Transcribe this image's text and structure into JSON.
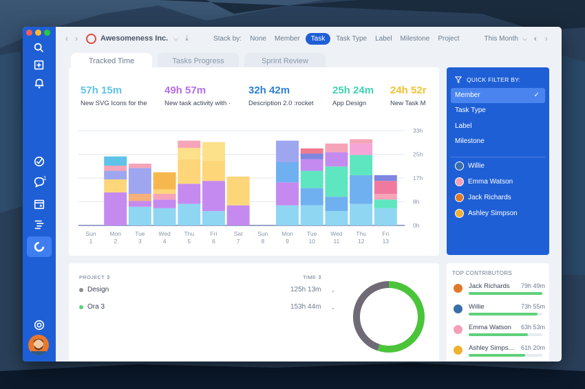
{
  "colors": {
    "brand": "#1f5fd6",
    "accent": "#3f7ef0",
    "green": "#4bc44a"
  },
  "sidebar": {
    "icons": [
      "search-icon",
      "add-task-icon",
      "bell-icon",
      "check-circle-icon",
      "chat-icon",
      "calendar-icon",
      "list-icon",
      "reports-icon",
      "help-icon"
    ],
    "chat_badge": "1"
  },
  "toolbar": {
    "company": "Awesomeness Inc.",
    "stack_by_label": "Stack by:",
    "stack_options": [
      "None",
      "Member",
      "Task",
      "Task Type",
      "Label",
      "Milestone",
      "Project"
    ],
    "stack_selected": "Task",
    "period": "This Month"
  },
  "tabs": [
    "Tracked Time",
    "Tasks Progress",
    "Sprint Review"
  ],
  "stats": [
    {
      "value": "57h 15m",
      "label": "New SVG Icons for the",
      "color": "#5ec3e8"
    },
    {
      "value": "49h 57m",
      "label": "New task activity with ·",
      "color": "#b56ee8"
    },
    {
      "value": "32h 42m",
      "label": "Description 2.0 :rocket",
      "color": "#2f7fd6"
    },
    {
      "value": "25h 24m",
      "label": "App Design",
      "color": "#3fd4b0"
    },
    {
      "value": "24h 52r",
      "label": "New Task M",
      "color": "#f2c230"
    }
  ],
  "chart_data": {
    "type": "bar",
    "stacked": true,
    "y_ticks": [
      "33h",
      "25h",
      "17h",
      "8h",
      "0h"
    ],
    "ylim": [
      0,
      33
    ],
    "categories": [
      {
        "day": "Sun",
        "date": "1"
      },
      {
        "day": "Mon",
        "date": "2"
      },
      {
        "day": "Tue",
        "date": "3"
      },
      {
        "day": "Wed",
        "date": "4"
      },
      {
        "day": "Thu",
        "date": "5"
      },
      {
        "day": "Fri",
        "date": "6"
      },
      {
        "day": "Sat",
        "date": "7"
      },
      {
        "day": "Sun",
        "date": "8"
      },
      {
        "day": "Mon",
        "date": "9"
      },
      {
        "day": "Tue",
        "date": "10"
      },
      {
        "day": "Wed",
        "date": "11"
      },
      {
        "day": "Thu",
        "date": "12"
      },
      {
        "day": "Fri",
        "date": "13"
      }
    ],
    "stacks": [
      [],
      [
        {
          "v": 11.5,
          "c": "#c58af0"
        },
        {
          "v": 4.5,
          "c": "#fdd67a"
        },
        {
          "v": 3.0,
          "c": "#9fa6f0"
        },
        {
          "v": 1.8,
          "c": "#f6a5b8"
        },
        {
          "v": 3.2,
          "c": "#5ec3e8"
        }
      ],
      [
        {
          "v": 6.5,
          "c": "#8fd6f2"
        },
        {
          "v": 2.0,
          "c": "#c58af0"
        },
        {
          "v": 2.5,
          "c": "#f6b07a"
        },
        {
          "v": 9.0,
          "c": "#9fa6f0"
        },
        {
          "v": 1.5,
          "c": "#f6a5b8"
        }
      ],
      [
        {
          "v": 6.0,
          "c": "#8fd6f2"
        },
        {
          "v": 3.0,
          "c": "#c58af0"
        },
        {
          "v": 2.0,
          "c": "#f6a5b8"
        },
        {
          "v": 1.5,
          "c": "#fdd67a"
        },
        {
          "v": 6.0,
          "c": "#f6b84e"
        }
      ],
      [
        {
          "v": 7.5,
          "c": "#8fd6f2"
        },
        {
          "v": 7.0,
          "c": "#c58af0"
        },
        {
          "v": 8.5,
          "c": "#fdd67a"
        },
        {
          "v": 4.0,
          "c": "#fde08a"
        },
        {
          "v": 2.5,
          "c": "#f6a5b8"
        }
      ],
      [
        {
          "v": 5.0,
          "c": "#8fd6f2"
        },
        {
          "v": 10.5,
          "c": "#c58af0"
        },
        {
          "v": 7.0,
          "c": "#fdd67a"
        },
        {
          "v": 6.5,
          "c": "#fde08a"
        }
      ],
      [
        {
          "v": 7.0,
          "c": "#c58af0"
        },
        {
          "v": 10.0,
          "c": "#fdd67a"
        }
      ],
      [],
      [
        {
          "v": 7.0,
          "c": "#8fd6f2"
        },
        {
          "v": 8.0,
          "c": "#c58af0"
        },
        {
          "v": 7.0,
          "c": "#6fb0f0"
        },
        {
          "v": 7.5,
          "c": "#9fa6f0"
        }
      ],
      [
        {
          "v": 7.0,
          "c": "#8fd6f2"
        },
        {
          "v": 6.0,
          "c": "#6fb0f0"
        },
        {
          "v": 6.0,
          "c": "#5ee6c0"
        },
        {
          "v": 4.0,
          "c": "#c58af0"
        },
        {
          "v": 2.0,
          "c": "#7f86e0"
        },
        {
          "v": 1.8,
          "c": "#f07a8f"
        }
      ],
      [
        {
          "v": 5.0,
          "c": "#8fd6f2"
        },
        {
          "v": 5.0,
          "c": "#6fb0f0"
        },
        {
          "v": 10.5,
          "c": "#5ee6c0"
        },
        {
          "v": 5.0,
          "c": "#c58af0"
        },
        {
          "v": 3.0,
          "c": "#f6a5b8"
        }
      ],
      [
        {
          "v": 7.5,
          "c": "#8fd6f2"
        },
        {
          "v": 10.0,
          "c": "#6fb0f0"
        },
        {
          "v": 7.0,
          "c": "#5ee6c0"
        },
        {
          "v": 4.0,
          "c": "#f6a5d8"
        },
        {
          "v": 1.5,
          "c": "#f6a5b8"
        }
      ],
      [
        {
          "v": 6.0,
          "c": "#8fd6f2"
        },
        {
          "v": 3.0,
          "c": "#5ee6c0"
        },
        {
          "v": 2.0,
          "c": "#f6a5b8"
        },
        {
          "v": 4.5,
          "c": "#f07a9f"
        },
        {
          "v": 2.0,
          "c": "#7f86e0"
        }
      ]
    ]
  },
  "quick_filter": {
    "title": "QUICK FILTER BY:",
    "options": [
      "Member",
      "Task Type",
      "Label",
      "Milestone"
    ],
    "selected": "Member",
    "members": [
      {
        "name": "Willie",
        "color": "#3a6ea8"
      },
      {
        "name": "Emma Watson",
        "color": "#f3a0b8"
      },
      {
        "name": "Jack Richards",
        "color": "#e07a2a"
      },
      {
        "name": "Ashley Simpson",
        "color": "#f0b030"
      }
    ]
  },
  "projects": {
    "col_project": "PROJECT",
    "col_time": "TIME",
    "rows": [
      {
        "name": "Design",
        "time": "125h 13m",
        "color": "#8a8d93"
      },
      {
        "name": "Ora 3",
        "time": "153h 44m",
        "color": "#5fd07a"
      }
    ],
    "donut": [
      {
        "label": "Design",
        "value": 125.2,
        "color": "#6f6a75"
      },
      {
        "label": "Ora 3",
        "value": 153.7,
        "color": "#4bc43a"
      }
    ]
  },
  "contributors": {
    "title": "TOP CONTRIBUTORS",
    "rows": [
      {
        "name": "Jack Richards",
        "time": "79h 49m",
        "fill": 1.0,
        "color": "#e07a2a"
      },
      {
        "name": "Willie",
        "time": "73h 55m",
        "fill": 0.93,
        "color": "#3a6ea8"
      },
      {
        "name": "Emma Watson",
        "time": "63h 53m",
        "fill": 0.8,
        "color": "#f3a0b8"
      },
      {
        "name": "Ashley Simps...",
        "time": "61h 20m",
        "fill": 0.77,
        "color": "#f0b030"
      }
    ]
  }
}
